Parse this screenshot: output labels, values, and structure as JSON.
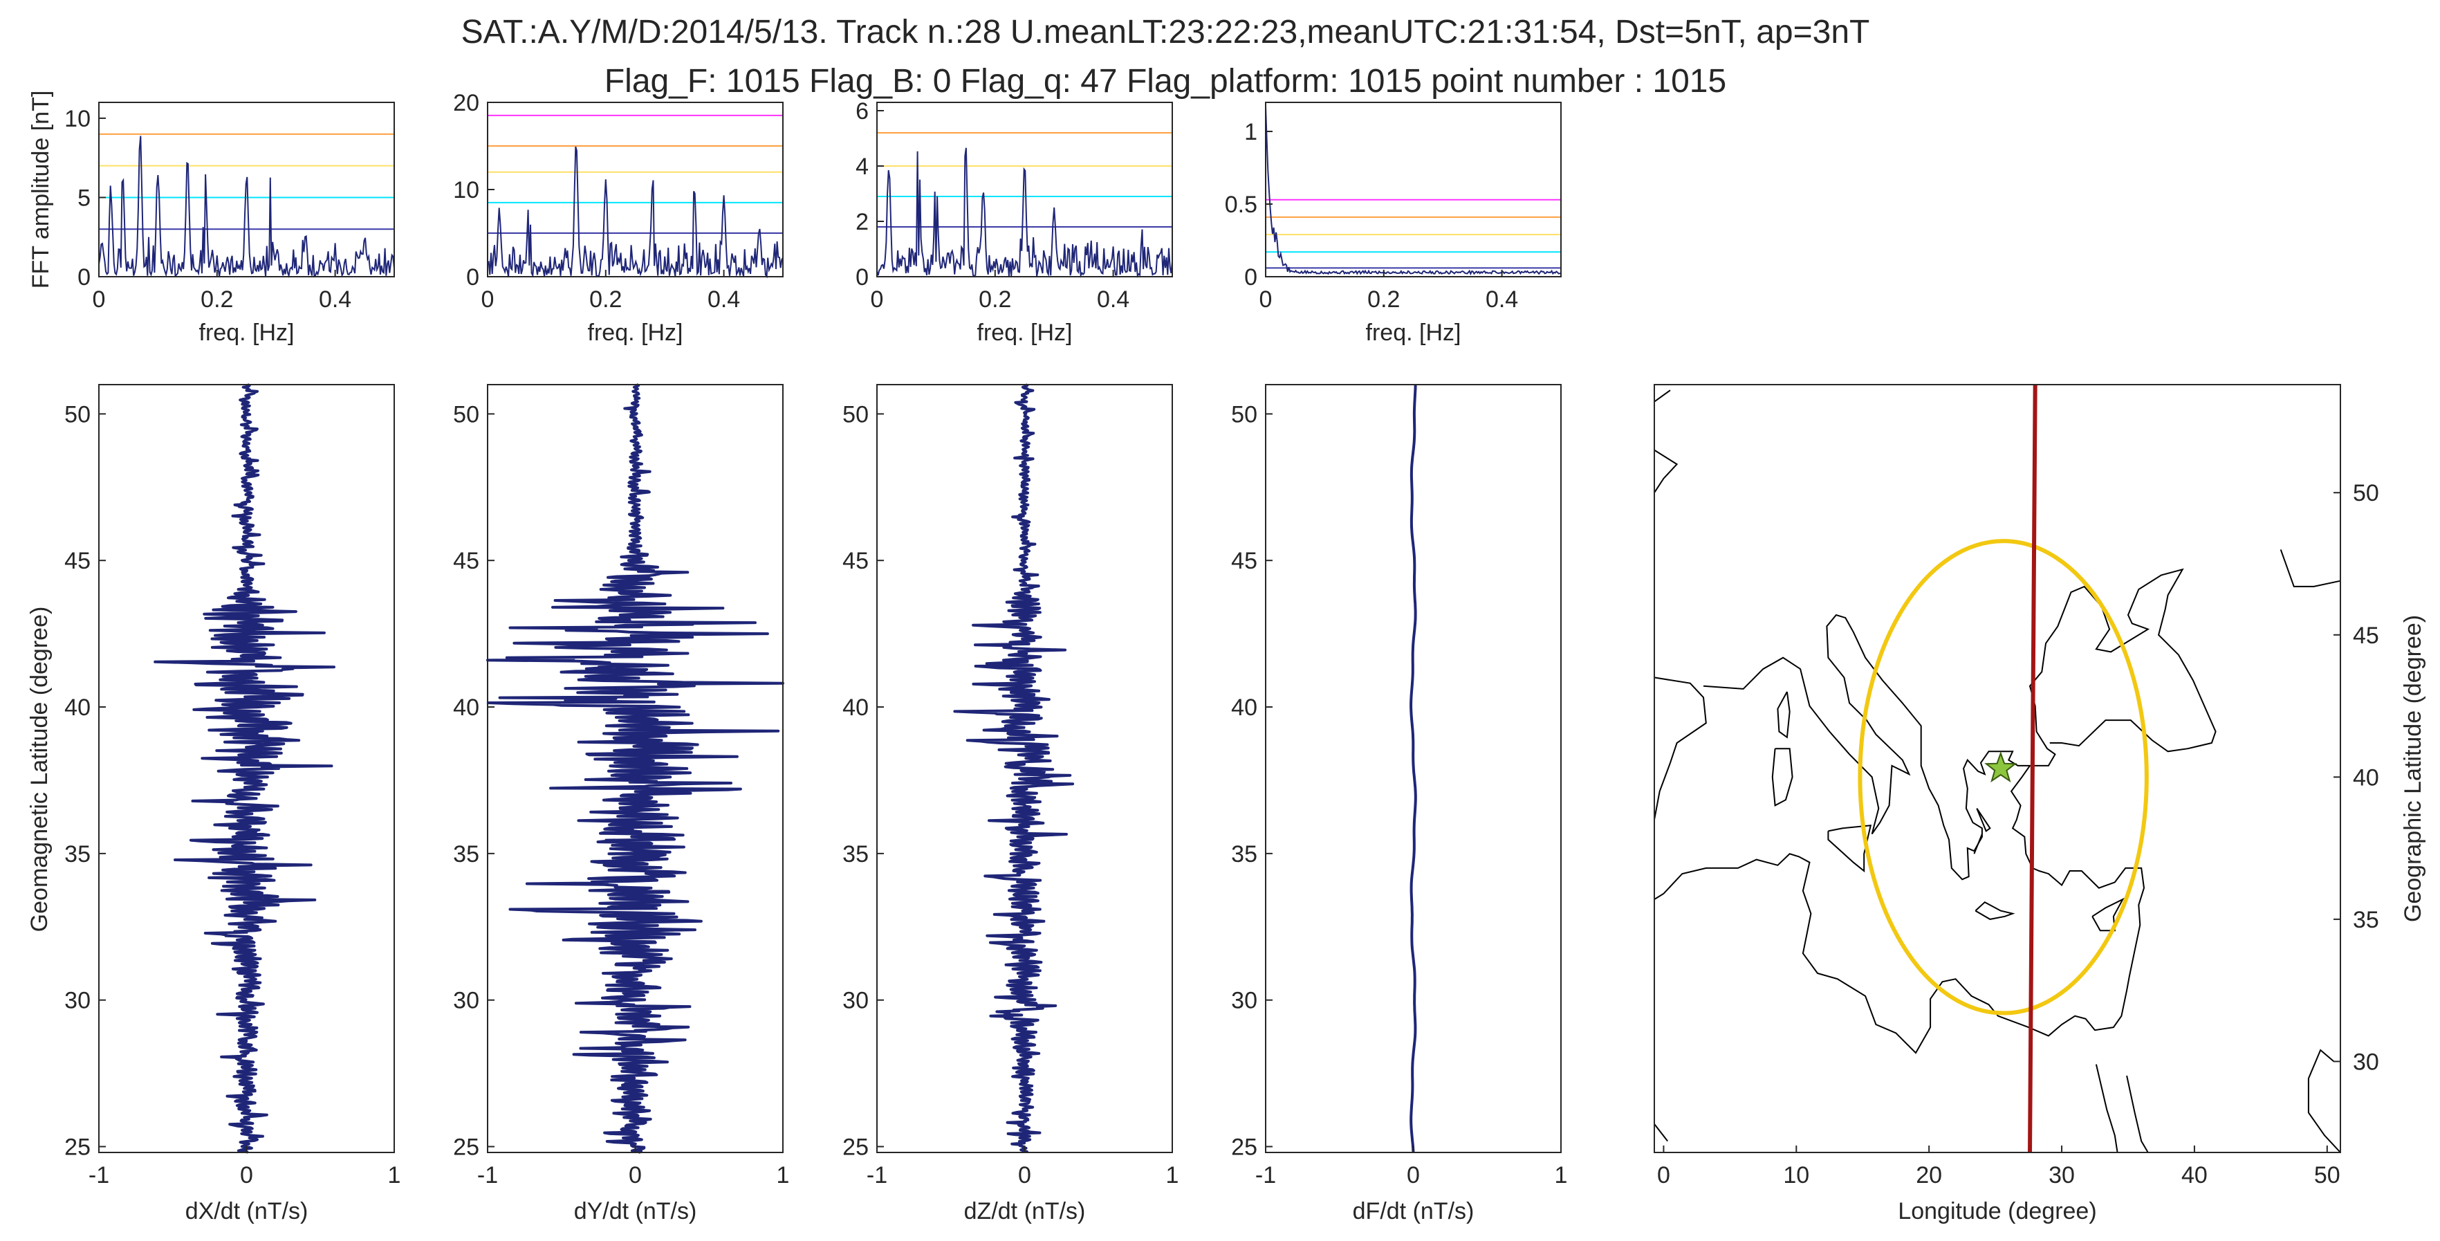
{
  "title_line1": "SAT.:A.Y/M/D:2014/5/13. Track n.:28 U.meanLT:23:22:23,meanUTC:21:31:54, Dst=5nT, ap=3nT",
  "title_line2": "Flag_F: 1015 Flag_B: 0 Flag_q: 47 Flag_platform: 1015 point number : 1015",
  "colors": {
    "trace": "#1f2677",
    "track": "#a31515",
    "ellipse": "#f2c811",
    "star": "#8cc63f",
    "axis": "#262626",
    "threshold_colors": [
      "#3a3aa8",
      "#00e5ff",
      "#ffe066",
      "#ffa040",
      "#ff33ff"
    ]
  },
  "fft_ylabel": "FFT amplitude [nT]",
  "fft_xlabel": "freq. [Hz]",
  "geomag_ylabel": "Geomagnetic Latitude (degree)",
  "chart_data": [
    {
      "type": "line",
      "id": "fft-x",
      "xlabel": "freq. [Hz]",
      "ylabel": "FFT amplitude [nT]",
      "xlim": [
        0,
        0.5
      ],
      "ylim": [
        0,
        11
      ],
      "xticks": [
        "0",
        "0.2",
        "0.4"
      ],
      "yticks": [
        "0",
        "5",
        "10"
      ],
      "thresholds": [
        3.0,
        5.0,
        7.0,
        9.0,
        11.0
      ],
      "peaks": [
        [
          0.005,
          2.5
        ],
        [
          0.02,
          6
        ],
        [
          0.04,
          7
        ],
        [
          0.07,
          9.3
        ],
        [
          0.1,
          7.5
        ],
        [
          0.15,
          7.8
        ],
        [
          0.18,
          7.3
        ],
        [
          0.25,
          7.0
        ],
        [
          0.29,
          6.5
        ],
        [
          0.35,
          2.8
        ],
        [
          0.45,
          2.7
        ]
      ],
      "max": 9.3,
      "seed": 3
    },
    {
      "type": "line",
      "id": "fft-y",
      "xlabel": "freq. [Hz]",
      "ylim": [
        0,
        20
      ],
      "xlim": [
        0,
        0.5
      ],
      "xticks": [
        "0",
        "0.2",
        "0.4"
      ],
      "yticks": [
        "0",
        "10",
        "20"
      ],
      "thresholds": [
        5.0,
        8.5,
        12.0,
        15.0,
        18.5
      ],
      "peaks": [
        [
          0.02,
          8
        ],
        [
          0.07,
          10
        ],
        [
          0.15,
          17.5
        ],
        [
          0.2,
          12
        ],
        [
          0.28,
          12.5
        ],
        [
          0.35,
          11
        ],
        [
          0.4,
          10
        ],
        [
          0.46,
          6
        ]
      ],
      "max": 17.5,
      "seed": 7
    },
    {
      "type": "line",
      "id": "fft-z",
      "xlabel": "freq. [Hz]",
      "ylim": [
        0,
        6.3
      ],
      "xlim": [
        0,
        0.5
      ],
      "xticks": [
        "0",
        "0.2",
        "0.4"
      ],
      "yticks": [
        "0",
        "2",
        "4",
        "6"
      ],
      "thresholds": [
        1.8,
        2.9,
        4.0,
        5.2,
        6.3
      ],
      "peaks": [
        [
          0.02,
          4.5
        ],
        [
          0.07,
          5.6
        ],
        [
          0.1,
          4.0
        ],
        [
          0.15,
          5.0
        ],
        [
          0.18,
          3.6
        ],
        [
          0.25,
          4.2
        ],
        [
          0.3,
          2.7
        ],
        [
          0.45,
          2.0
        ]
      ],
      "max": 5.6,
      "seed": 11
    },
    {
      "type": "line",
      "id": "fft-f",
      "xlabel": "freq. [Hz]",
      "ylim": [
        0,
        1.2
      ],
      "xlim": [
        0,
        0.5
      ],
      "xticks": [
        "0",
        "0.2",
        "0.4"
      ],
      "yticks": [
        "0",
        "0.5",
        "1"
      ],
      "thresholds": [
        0.06,
        0.17,
        0.29,
        0.41,
        0.53
      ],
      "peaks": [
        [
          0.002,
          1.2
        ],
        [
          0.01,
          0.9
        ],
        [
          0.02,
          0.5
        ],
        [
          0.035,
          0.2
        ]
      ],
      "max": 1.2,
      "seed": 5,
      "lowpass": true
    },
    {
      "type": "line",
      "id": "ts-x",
      "xlabel": "dX/dt (nT/s)",
      "ylabel": "Geomagnetic Latitude (degree)",
      "xlim": [
        -1,
        1
      ],
      "ylim": [
        24.8,
        51
      ],
      "xticks": [
        "-1",
        "0",
        "1"
      ],
      "yticks": [
        "25",
        "30",
        "35",
        "40",
        "45",
        "50"
      ],
      "amp_profile": [
        [
          51,
          0.07
        ],
        [
          46,
          0.08
        ],
        [
          44,
          0.12
        ],
        [
          43.5,
          0.6
        ],
        [
          42,
          0.5
        ],
        [
          41,
          0.55
        ],
        [
          39,
          0.7
        ],
        [
          37,
          0.3
        ],
        [
          34,
          0.5
        ],
        [
          32,
          0.2
        ],
        [
          28,
          0.15
        ],
        [
          25,
          0.1
        ]
      ],
      "seed": 21
    },
    {
      "type": "line",
      "id": "ts-y",
      "xlabel": "dY/dt (nT/s)",
      "xlim": [
        -1,
        1
      ],
      "ylim": [
        24.8,
        51
      ],
      "xticks": [
        "-1",
        "0",
        "1"
      ],
      "yticks": [
        "25",
        "30",
        "35",
        "40",
        "45",
        "50"
      ],
      "amp_profile": [
        [
          51,
          0.07
        ],
        [
          45.5,
          0.1
        ],
        [
          44,
          0.5
        ],
        [
          42,
          0.9
        ],
        [
          40.7,
          1.0
        ],
        [
          39,
          0.8
        ],
        [
          37,
          0.6
        ],
        [
          34,
          0.7
        ],
        [
          32.5,
          0.9
        ],
        [
          31,
          0.4
        ],
        [
          28,
          0.35
        ],
        [
          26,
          0.25
        ],
        [
          25,
          0.15
        ]
      ],
      "seed": 33
    },
    {
      "type": "line",
      "id": "ts-z",
      "xlabel": "dZ/dt (nT/s)",
      "xlim": [
        -1,
        1
      ],
      "ylim": [
        24.8,
        51
      ],
      "xticks": [
        "-1",
        "0",
        "1"
      ],
      "yticks": [
        "25",
        "30",
        "35",
        "40",
        "45",
        "50"
      ],
      "amp_profile": [
        [
          51,
          0.05
        ],
        [
          44,
          0.08
        ],
        [
          43.5,
          0.3
        ],
        [
          42,
          0.3
        ],
        [
          39.3,
          0.45
        ],
        [
          37,
          0.25
        ],
        [
          33,
          0.22
        ],
        [
          28,
          0.18
        ],
        [
          25,
          0.08
        ]
      ],
      "seed": 45
    },
    {
      "type": "line",
      "id": "ts-f",
      "xlabel": "dF/dt (nT/s)",
      "xlim": [
        -1,
        1
      ],
      "ylim": [
        24.8,
        51
      ],
      "xticks": [
        "-1",
        "0",
        "1"
      ],
      "yticks": [
        "25",
        "30",
        "35",
        "40",
        "45",
        "50"
      ],
      "smooth": true
    },
    {
      "type": "map",
      "id": "map",
      "xlabel": "Longitude (degree)",
      "ylabel": "Geographic Latitude (degree)",
      "xlim": [
        -0.7,
        51
      ],
      "ylim": [
        26.8,
        53.8
      ],
      "xticks": [
        "0",
        "10",
        "20",
        "30",
        "40",
        "50"
      ],
      "yticks": [
        "30",
        "35",
        "40",
        "45",
        "50"
      ],
      "track": [
        [
          27.6,
          26.8
        ],
        [
          28.0,
          53.8
        ]
      ],
      "epicenter": [
        25.4,
        40.3
      ],
      "ellipse": {
        "center": [
          25.6,
          40.0
        ],
        "rx": 10.8,
        "ry": 8.3
      }
    }
  ]
}
